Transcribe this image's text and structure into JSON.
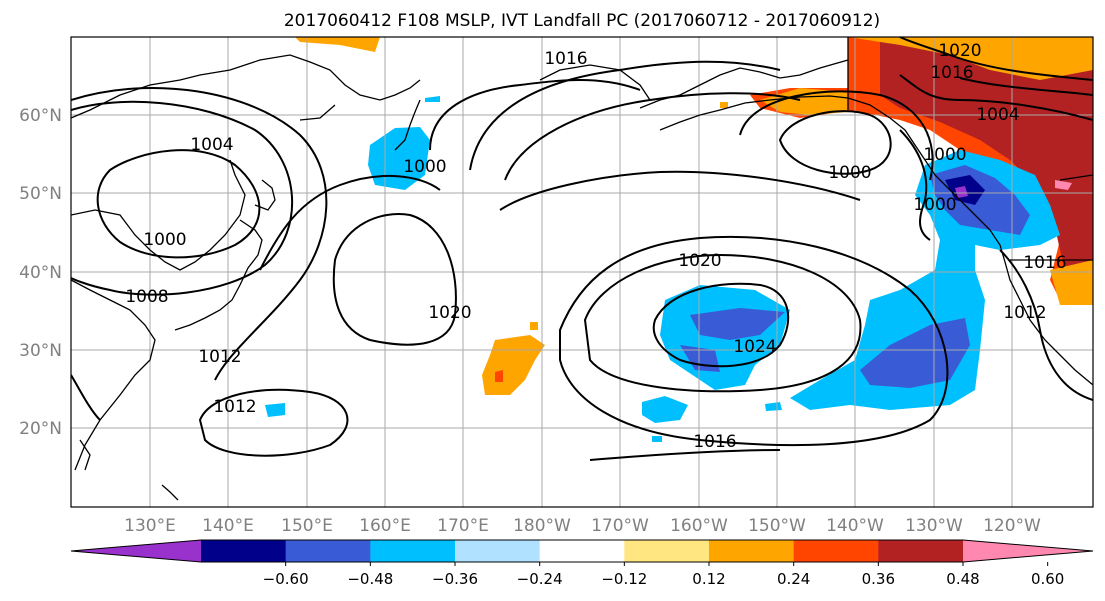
{
  "title": "2017060412 F108 MSLP, IVT Landfall PC (2017060712 - 2017060912)",
  "axes": {
    "lat_labels": [
      "60°N",
      "50°N",
      "40°N",
      "30°N",
      "20°N"
    ],
    "lon_labels": [
      "130°E",
      "140°E",
      "150°E",
      "160°E",
      "170°E",
      "180°W",
      "170°W",
      "160°W",
      "150°W",
      "140°W",
      "130°W",
      "120°W"
    ]
  },
  "contour_labels": [
    "1016",
    "1020",
    "1016",
    "1004",
    "1000",
    "1000",
    "1008",
    "1012",
    "1012",
    "1016",
    "1020",
    "1020",
    "1024",
    "1000",
    "1004",
    "1000",
    "1000",
    "1012",
    "1016"
  ],
  "colorbar": {
    "tick_labels": [
      "−0.60",
      "−0.48",
      "−0.36",
      "−0.24",
      "−0.12",
      "0.12",
      "0.24",
      "0.36",
      "0.48",
      "0.60"
    ],
    "colors": [
      "#9932cc",
      "#00008b",
      "#3a5bd6",
      "#00bfff",
      "#b0e2ff",
      "#ffffff",
      "#ffe680",
      "#ffa500",
      "#ff4500",
      "#b22222",
      "#ff88b0"
    ]
  },
  "colors": {
    "grid": "#a8a8a8",
    "contour": "#000000",
    "axis_label": "#808080"
  }
}
